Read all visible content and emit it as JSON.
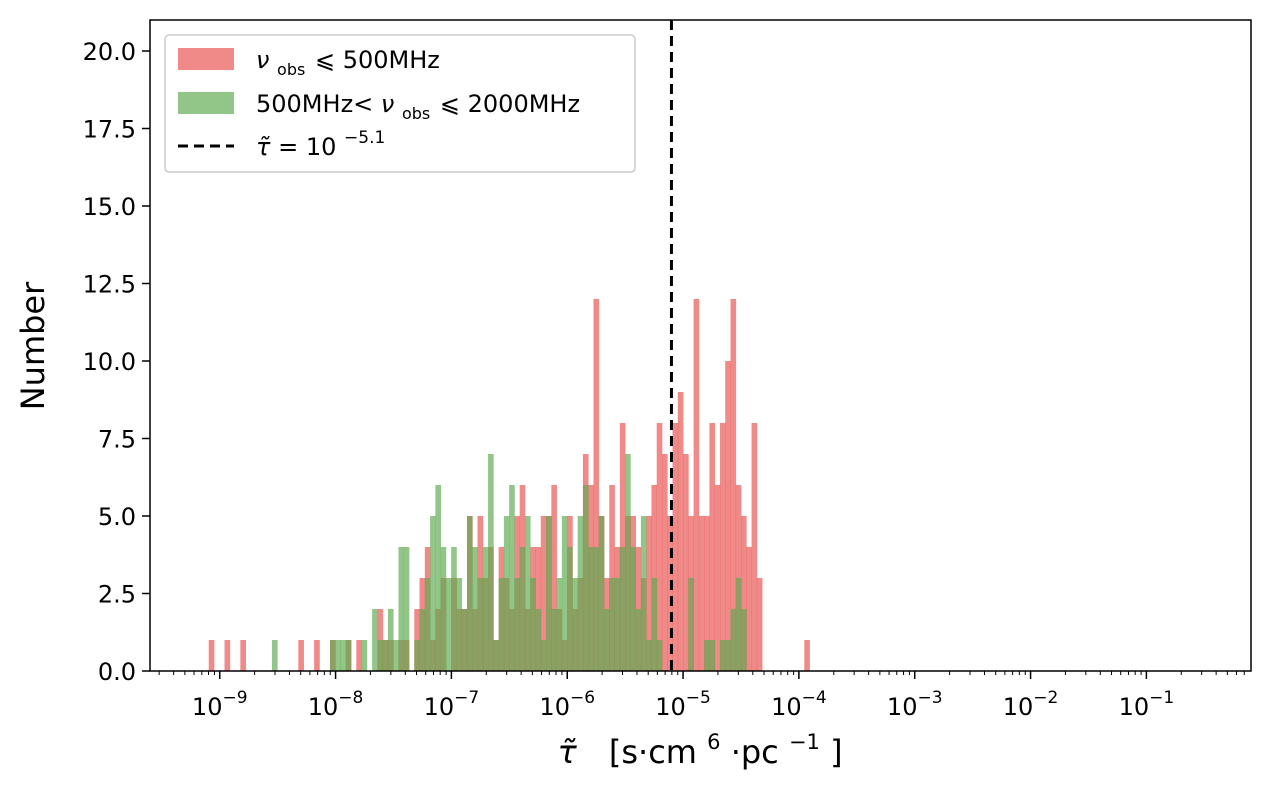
{
  "chart_data": {
    "type": "histogram",
    "xscale": "log",
    "xlim": [
      2.5e-10,
      0.8
    ],
    "ylim": [
      0,
      21
    ],
    "ylabel": "Number",
    "xlabel": {
      "symbol": "τ̃",
      "units_prefix": "[s·cm",
      "units_exp1": "6",
      "units_mid": "·pc",
      "units_exp2": "−1",
      "units_suffix": "]"
    },
    "x_ticks": [
      {
        "value": 1e-09,
        "exp": "−9"
      },
      {
        "value": 1e-08,
        "exp": "−8"
      },
      {
        "value": 1e-07,
        "exp": "−7"
      },
      {
        "value": 1e-06,
        "exp": "−6"
      },
      {
        "value": 1e-05,
        "exp": "−5"
      },
      {
        "value": 0.0001,
        "exp": "−4"
      },
      {
        "value": 0.001,
        "exp": "−3"
      },
      {
        "value": 0.01,
        "exp": "−2"
      },
      {
        "value": 0.1,
        "exp": "−1"
      }
    ],
    "x_tick_base": "10",
    "y_ticks": [
      {
        "value": 0,
        "label": "0.0"
      },
      {
        "value": 2.5,
        "label": "2.5"
      },
      {
        "value": 5,
        "label": "5.0"
      },
      {
        "value": 7.5,
        "label": "7.5"
      },
      {
        "value": 10,
        "label": "10.0"
      },
      {
        "value": 12.5,
        "label": "12.5"
      },
      {
        "value": 15,
        "label": "15.0"
      },
      {
        "value": 17.5,
        "label": "17.5"
      },
      {
        "value": 20,
        "label": "20.0"
      }
    ],
    "bins": {
      "log_start": -9.55,
      "log_end": -0.45,
      "count": 200
    },
    "series": [
      {
        "name_parts": {
          "symbol": "ν",
          "sub": "obs",
          "rel": "⩽ 500MHz"
        },
        "color": "#e8524f",
        "opacity": 0.68,
        "counts": [
          0,
          0,
          0,
          0,
          0,
          0,
          0,
          0,
          0,
          0,
          1,
          0,
          0,
          1,
          0,
          0,
          1,
          0,
          0,
          0,
          0,
          0,
          0,
          0,
          0,
          0,
          0,
          1,
          0,
          0,
          1,
          0,
          0,
          1,
          0,
          0,
          1,
          0,
          1,
          0,
          0,
          0,
          2,
          1,
          1,
          0,
          1,
          1,
          0,
          2,
          3,
          4,
          1,
          2,
          3,
          0,
          3,
          2,
          2,
          5,
          2,
          5,
          3,
          4,
          1,
          4,
          3,
          2,
          5,
          6,
          2,
          4,
          4,
          5,
          5,
          6,
          2,
          1,
          5,
          2,
          3,
          7,
          6,
          12,
          5,
          3,
          6,
          4,
          8,
          5,
          5,
          4,
          3,
          5,
          6,
          8,
          7,
          5,
          8,
          9,
          7,
          5,
          12,
          5,
          5,
          8,
          6,
          8,
          10,
          12,
          6,
          5,
          4,
          8,
          3,
          0,
          0,
          0,
          0,
          0,
          0,
          0,
          0,
          1,
          0,
          0,
          0,
          0,
          0,
          0,
          0,
          0,
          0,
          0,
          0,
          0,
          0,
          0,
          0,
          0,
          0,
          0,
          0,
          0,
          0,
          0,
          0,
          0,
          0,
          0,
          0,
          0,
          0,
          0,
          0,
          0,
          0,
          0,
          0,
          0,
          0,
          0,
          0,
          0,
          0,
          0,
          0,
          0,
          0,
          0,
          0,
          0,
          0,
          0,
          0,
          0,
          0,
          0,
          0,
          0,
          0,
          0,
          0,
          0,
          0,
          0,
          0,
          0,
          0,
          0,
          0,
          0,
          0,
          0,
          0,
          0,
          0,
          0,
          0,
          0
        ]
      },
      {
        "name_parts": {
          "symbol": "",
          "pre": "500MHz<",
          "symbol2": "ν",
          "sub": "obs",
          "rel": "⩽ 2000MHz"
        },
        "color": "#5fa94f",
        "opacity": 0.68,
        "counts": [
          0,
          0,
          0,
          0,
          0,
          0,
          0,
          0,
          0,
          0,
          0,
          0,
          0,
          0,
          0,
          0,
          0,
          0,
          0,
          0,
          0,
          0,
          1,
          0,
          0,
          0,
          0,
          0,
          0,
          0,
          0,
          0,
          0,
          1,
          1,
          1,
          1,
          0,
          0,
          1,
          0,
          2,
          1,
          1,
          2,
          1,
          4,
          4,
          0,
          1,
          2,
          3,
          5,
          6,
          4,
          3,
          4,
          3,
          2,
          5,
          4,
          3,
          4,
          7,
          1,
          3,
          5,
          6,
          3,
          4,
          5,
          3,
          2,
          1,
          5,
          2,
          3,
          5,
          4,
          3,
          5,
          6,
          4,
          4,
          5,
          2,
          3,
          3,
          4,
          7,
          4,
          2,
          5,
          1,
          3,
          1,
          0,
          0,
          0,
          0,
          0,
          3,
          0,
          0,
          1,
          1,
          0,
          1,
          1,
          2,
          3,
          2,
          0,
          0,
          0,
          0,
          0,
          0,
          0,
          0,
          0,
          0,
          0,
          0,
          0,
          0,
          0,
          0,
          0,
          0,
          0,
          0,
          0,
          0,
          0,
          0,
          0,
          0,
          0,
          0,
          0,
          0,
          0,
          0,
          0,
          0,
          0,
          0,
          0,
          0,
          0,
          0,
          0,
          0,
          0,
          0,
          0,
          0,
          0,
          0,
          0,
          0,
          0,
          0,
          0,
          0,
          0,
          0,
          0,
          0,
          0,
          0,
          0,
          0,
          0,
          0,
          0,
          0,
          0,
          0,
          0,
          0,
          0,
          0,
          0,
          0,
          0,
          0,
          0,
          0,
          0,
          0,
          0,
          0,
          0,
          0,
          0,
          0,
          0,
          0
        ]
      }
    ],
    "vline": {
      "value": 7.94e-06,
      "label_symbol": "τ̃",
      "label_eq": " = 10",
      "label_exp": "−5.1",
      "color": "#000000",
      "style": "dashed"
    },
    "legend": {
      "position": "upper-left"
    },
    "grid": false
  }
}
